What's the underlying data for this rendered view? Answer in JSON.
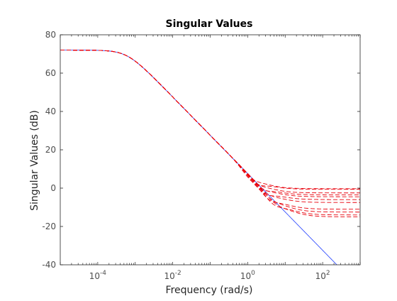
{
  "chart_data": {
    "type": "line",
    "title": "Singular Values",
    "xlabel": "Frequency (rad/s)",
    "ylabel": "Singular Values (dB)",
    "xscale": "log",
    "xlim": [
      1e-05,
      1000
    ],
    "ylim": [
      -40,
      80
    ],
    "xticks": [
      {
        "value": 0.0001,
        "base": "10",
        "exp": "-4"
      },
      {
        "value": 0.01,
        "base": "10",
        "exp": "-2"
      },
      {
        "value": 1,
        "base": "10",
        "exp": "0"
      },
      {
        "value": 100,
        "base": "10",
        "exp": "2"
      }
    ],
    "yticks": [
      -40,
      -20,
      0,
      20,
      40,
      60,
      80
    ],
    "grid": false,
    "colors": {
      "solid": "#1f3dff",
      "dashed": "#e8000b",
      "axes": "#262626",
      "tick_text": "#4d4d4d"
    },
    "model": {
      "dc_gain_db": 72,
      "corner_rad_s": 0.0006
    },
    "series": [
      {
        "style": "solid",
        "color": "#1f3dff",
        "floor_db": null,
        "knee_rad_s": 1.5
      },
      {
        "style": "dashed",
        "color": "#e8000b",
        "floor_db": -0.3,
        "knee_rad_s": 1.2
      },
      {
        "style": "dashed",
        "color": "#e8000b",
        "floor_db": -0.6,
        "knee_rad_s": 1.4
      },
      {
        "style": "dashed",
        "color": "#e8000b",
        "floor_db": -2.5,
        "knee_rad_s": 1.6
      },
      {
        "style": "dashed",
        "color": "#e8000b",
        "floor_db": -3.5,
        "knee_rad_s": 1.9
      },
      {
        "style": "dashed",
        "color": "#e8000b",
        "floor_db": -4.5,
        "knee_rad_s": 2.2
      },
      {
        "style": "dashed",
        "color": "#e8000b",
        "floor_db": -6.0,
        "knee_rad_s": 2.5
      },
      {
        "style": "dashed",
        "color": "#e8000b",
        "floor_db": -7.5,
        "knee_rad_s": 2.9
      },
      {
        "style": "dashed",
        "color": "#e8000b",
        "floor_db": -11.0,
        "knee_rad_s": 3.4
      },
      {
        "style": "dashed",
        "color": "#e8000b",
        "floor_db": -12.5,
        "knee_rad_s": 3.9
      },
      {
        "style": "dashed",
        "color": "#e8000b",
        "floor_db": -14.0,
        "knee_rad_s": 4.5
      },
      {
        "style": "dashed",
        "color": "#e8000b",
        "floor_db": -15.0,
        "knee_rad_s": 5.0
      }
    ]
  }
}
